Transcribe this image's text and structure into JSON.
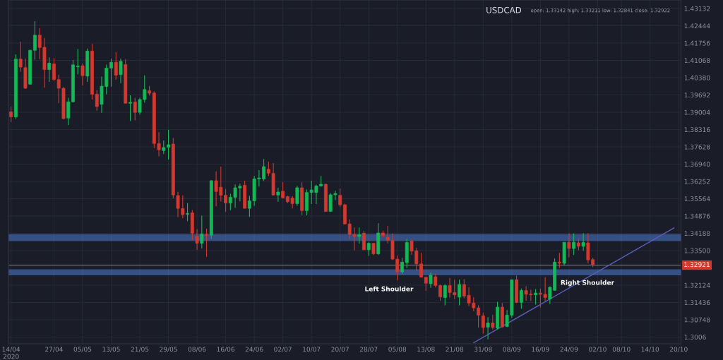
{
  "chart_data": {
    "type": "candlestick",
    "title": "USDCAD",
    "subtitle": "open: 1.33142 high: 1.33211 low: 1.32841 close: 1.32922",
    "categories": [
      "14/04\n2020",
      null,
      null,
      null,
      null,
      null,
      null,
      null,
      null,
      "27/04",
      null,
      null,
      null,
      null,
      null,
      "05/05",
      null,
      null,
      null,
      null,
      null,
      "13/05",
      null,
      null,
      null,
      null,
      null,
      "21/05",
      null,
      null,
      null,
      null,
      null,
      "29/05",
      null,
      null,
      null,
      null,
      null,
      "08/06",
      null,
      null,
      null,
      null,
      null,
      "16/06",
      null,
      null,
      null,
      null,
      null,
      "24/06",
      null,
      null,
      null,
      null,
      null,
      "02/07",
      null,
      null,
      null,
      null,
      null,
      "10/07",
      null,
      null,
      null,
      null,
      null,
      "20/07",
      null,
      null,
      null,
      null,
      null,
      "28/07",
      null,
      null,
      null,
      null,
      null,
      "05/08",
      null,
      null,
      null,
      null,
      null,
      "13/08",
      null,
      null,
      null,
      null,
      null,
      "21/08",
      null,
      null,
      null,
      null,
      null,
      "31/08",
      null,
      null,
      null,
      null,
      null,
      "08/09",
      null,
      null,
      null,
      null,
      null,
      "16/09",
      null,
      null,
      null,
      null,
      null,
      "24/09",
      null,
      null,
      null,
      null,
      null,
      "02/10",
      null,
      null,
      null,
      null,
      "08/10",
      null,
      null,
      null,
      null,
      null,
      "14/10",
      null,
      null,
      null,
      null,
      null,
      "20/10"
    ],
    "ohlc": [
      [
        1.3902,
        1.3923,
        1.3861,
        1.3882
      ],
      [
        1.3882,
        1.4131,
        1.3874,
        1.4112
      ],
      [
        1.4112,
        1.4181,
        1.4061,
        1.408
      ],
      [
        1.4078,
        1.4114,
        1.3993,
        1.3996
      ],
      [
        1.4012,
        1.415,
        1.401,
        1.4147
      ],
      [
        1.4147,
        1.4263,
        1.411,
        1.4207
      ],
      [
        1.4207,
        1.4235,
        1.4112,
        1.4158
      ],
      [
        1.4159,
        1.4196,
        1.3998,
        1.407
      ],
      [
        1.407,
        1.4119,
        1.4021,
        1.4096
      ],
      [
        1.4093,
        1.4116,
        1.4026,
        1.403
      ],
      [
        1.403,
        1.4049,
        1.3936,
        1.3996
      ],
      [
        1.3996,
        1.4001,
        1.3872,
        1.3875
      ],
      [
        1.3877,
        1.3958,
        1.3849,
        1.3942
      ],
      [
        1.3942,
        1.4108,
        1.3939,
        1.4089
      ],
      [
        1.4081,
        1.4152,
        1.4051,
        1.4084
      ],
      [
        1.4085,
        1.4094,
        1.4007,
        1.4046
      ],
      [
        1.4044,
        1.4154,
        1.4021,
        1.4144
      ],
      [
        1.4144,
        1.4173,
        1.3951,
        1.3972
      ],
      [
        1.3972,
        1.3989,
        1.3907,
        1.3923
      ],
      [
        1.3932,
        1.4042,
        1.3898,
        1.4004
      ],
      [
        1.4003,
        1.409,
        1.3972,
        1.4076
      ],
      [
        1.4076,
        1.4114,
        1.4002,
        1.4099
      ],
      [
        1.4099,
        1.414,
        1.403,
        1.4048
      ],
      [
        1.405,
        1.4114,
        1.4016,
        1.4103
      ],
      [
        1.409,
        1.4112,
        1.3936,
        1.3936
      ],
      [
        1.3936,
        1.3968,
        1.3865,
        1.394
      ],
      [
        1.3941,
        1.3958,
        1.3868,
        1.39
      ],
      [
        1.39,
        1.3958,
        1.3891,
        1.3951
      ],
      [
        1.3951,
        1.4047,
        1.3939,
        1.3991
      ],
      [
        1.3986,
        1.4005,
        1.3967,
        1.3976
      ],
      [
        1.3977,
        1.3984,
        1.3758,
        1.3776
      ],
      [
        1.3776,
        1.3821,
        1.3725,
        1.3751
      ],
      [
        1.3748,
        1.3788,
        1.3734,
        1.376
      ],
      [
        1.3761,
        1.383,
        1.3712,
        1.3771
      ],
      [
        1.3774,
        1.3798,
        1.3558,
        1.3571
      ],
      [
        1.3569,
        1.3584,
        1.3483,
        1.3518
      ],
      [
        1.3517,
        1.357,
        1.3479,
        1.3493
      ],
      [
        1.3494,
        1.3539,
        1.3467,
        1.3498
      ],
      [
        1.35,
        1.3511,
        1.3393,
        1.3419
      ],
      [
        1.3407,
        1.3435,
        1.3353,
        1.3379
      ],
      [
        1.3379,
        1.3489,
        1.3358,
        1.3416
      ],
      [
        1.3414,
        1.3437,
        1.3325,
        1.341
      ],
      [
        1.3411,
        1.363,
        1.3397,
        1.3628
      ],
      [
        1.3628,
        1.3665,
        1.3526,
        1.3585
      ],
      [
        1.3602,
        1.3684,
        1.3545,
        1.357
      ],
      [
        1.357,
        1.3595,
        1.3504,
        1.3539
      ],
      [
        1.3539,
        1.3576,
        1.3511,
        1.3562
      ],
      [
        1.3562,
        1.3613,
        1.352,
        1.36
      ],
      [
        1.3599,
        1.3616,
        1.3546,
        1.3606
      ],
      [
        1.361,
        1.3628,
        1.3518,
        1.3518
      ],
      [
        1.3518,
        1.3568,
        1.3484,
        1.3548
      ],
      [
        1.3548,
        1.3646,
        1.3528,
        1.3635
      ],
      [
        1.3635,
        1.367,
        1.3605,
        1.3639
      ],
      [
        1.3635,
        1.3714,
        1.3627,
        1.3684
      ],
      [
        1.3674,
        1.3704,
        1.3647,
        1.3658
      ],
      [
        1.3657,
        1.3698,
        1.3569,
        1.3571
      ],
      [
        1.3571,
        1.36,
        1.3544,
        1.3583
      ],
      [
        1.3586,
        1.3622,
        1.3557,
        1.356
      ],
      [
        1.3565,
        1.3568,
        1.3539,
        1.3544
      ],
      [
        1.3559,
        1.3566,
        1.3518,
        1.3537
      ],
      [
        1.3537,
        1.3607,
        1.3528,
        1.36
      ],
      [
        1.36,
        1.3622,
        1.349,
        1.3509
      ],
      [
        1.3509,
        1.3593,
        1.349,
        1.3581
      ],
      [
        1.3581,
        1.3628,
        1.3535,
        1.3591
      ],
      [
        1.3581,
        1.3612,
        1.3535,
        1.3607
      ],
      [
        1.3607,
        1.3646,
        1.3604,
        1.3614
      ],
      [
        1.3614,
        1.3616,
        1.3504,
        1.3506
      ],
      [
        1.3506,
        1.3579,
        1.3504,
        1.3572
      ],
      [
        1.3572,
        1.3588,
        1.3551,
        1.3577
      ],
      [
        1.357,
        1.3597,
        1.3523,
        1.3532
      ],
      [
        1.3532,
        1.3537,
        1.3453,
        1.3456
      ],
      [
        1.3456,
        1.3474,
        1.3397,
        1.3414
      ],
      [
        1.3414,
        1.3442,
        1.3351,
        1.3406
      ],
      [
        1.3406,
        1.3442,
        1.3377,
        1.3413
      ],
      [
        1.3419,
        1.3429,
        1.3353,
        1.3353
      ],
      [
        1.3353,
        1.3383,
        1.3329,
        1.3379
      ],
      [
        1.3379,
        1.3381,
        1.3332,
        1.3337
      ],
      [
        1.3337,
        1.3459,
        1.3332,
        1.342
      ],
      [
        1.342,
        1.343,
        1.3402,
        1.3409
      ],
      [
        1.3403,
        1.3448,
        1.3379,
        1.3391
      ],
      [
        1.339,
        1.3418,
        1.3313,
        1.3316
      ],
      [
        1.3316,
        1.333,
        1.3232,
        1.3265
      ],
      [
        1.3265,
        1.3321,
        1.3256,
        1.3304
      ],
      [
        1.3302,
        1.3397,
        1.3281,
        1.3382
      ],
      [
        1.3388,
        1.3393,
        1.3332,
        1.3348
      ],
      [
        1.3349,
        1.336,
        1.327,
        1.3297
      ],
      [
        1.3297,
        1.3341,
        1.3244,
        1.3244
      ],
      [
        1.3244,
        1.3244,
        1.319,
        1.322
      ],
      [
        1.3218,
        1.3262,
        1.3202,
        1.3253
      ],
      [
        1.3246,
        1.3257,
        1.3203,
        1.3211
      ],
      [
        1.3211,
        1.3215,
        1.315,
        1.3166
      ],
      [
        1.3163,
        1.3216,
        1.3132,
        1.3211
      ],
      [
        1.3211,
        1.3241,
        1.3163,
        1.3183
      ],
      [
        1.3183,
        1.3234,
        1.3157,
        1.3174
      ],
      [
        1.3165,
        1.3234,
        1.3132,
        1.3215
      ],
      [
        1.3215,
        1.3236,
        1.316,
        1.3169
      ],
      [
        1.3172,
        1.3204,
        1.3129,
        1.3141
      ],
      [
        1.3141,
        1.3164,
        1.3108,
        1.3122
      ],
      [
        1.3122,
        1.3132,
        1.3044,
        1.3093
      ],
      [
        1.309,
        1.3102,
        1.302,
        1.3044
      ],
      [
        1.3045,
        1.3085,
        1.2997,
        1.3062
      ],
      [
        1.3062,
        1.3094,
        1.3036,
        1.3044
      ],
      [
        1.3041,
        1.3146,
        1.3036,
        1.3125
      ],
      [
        1.3125,
        1.3141,
        1.3044,
        1.3046
      ],
      [
        1.3048,
        1.3113,
        1.3045,
        1.3093
      ],
      [
        1.3093,
        1.3234,
        1.3083,
        1.3234
      ],
      [
        1.3234,
        1.325,
        1.3141,
        1.3144
      ],
      [
        1.3144,
        1.3199,
        1.3118,
        1.3191
      ],
      [
        1.3191,
        1.3208,
        1.315,
        1.3176
      ],
      [
        1.3177,
        1.3194,
        1.3149,
        1.3174
      ],
      [
        1.3174,
        1.3197,
        1.3135,
        1.3181
      ],
      [
        1.3181,
        1.3199,
        1.3124,
        1.3176
      ],
      [
        1.3176,
        1.3244,
        1.315,
        1.3163
      ],
      [
        1.3157,
        1.3208,
        1.3137,
        1.3204
      ],
      [
        1.3192,
        1.3318,
        1.319,
        1.3304
      ],
      [
        1.3304,
        1.3341,
        1.3281,
        1.33
      ],
      [
        1.3299,
        1.3383,
        1.329,
        1.3383
      ],
      [
        1.3383,
        1.3418,
        1.3323,
        1.3358
      ],
      [
        1.3358,
        1.3418,
        1.3332,
        1.3383
      ],
      [
        1.3381,
        1.3399,
        1.3351,
        1.3367
      ],
      [
        1.3367,
        1.3419,
        1.3349,
        1.3382
      ],
      [
        1.3381,
        1.3419,
        1.3299,
        1.3313
      ],
      [
        1.33142,
        1.33211,
        1.32841,
        1.32922
      ],
      null,
      null,
      null,
      null,
      null,
      null,
      null,
      null,
      null,
      null,
      null,
      null,
      null,
      null,
      null,
      null,
      null,
      null
    ],
    "colors": [
      "#d2392f",
      "#14b856",
      "#d2392f",
      "#d2392f",
      "#14b856",
      "#14b856",
      "#d2392f",
      "#d2392f",
      "#14b856",
      "#d2392f",
      "#d2392f",
      "#d2392f",
      "#14b856",
      "#14b856",
      "#14b856",
      "#d2392f",
      "#14b856",
      "#d2392f",
      "#d2392f",
      "#14b856",
      "#14b856",
      "#14b856",
      "#d2392f",
      "#14b856",
      "#d2392f",
      "#14b856",
      "#d2392f",
      "#14b856",
      "#14b856",
      "#d2392f",
      "#d2392f",
      "#d2392f",
      "#14b856",
      "#14b856",
      "#d2392f",
      "#d2392f",
      "#d2392f",
      "#14b856",
      "#d2392f",
      "#d2392f",
      "#14b856",
      "#d2392f",
      "#14b856",
      "#d2392f",
      "#d2392f",
      "#d2392f",
      "#14b856",
      "#14b856",
      "#14b856",
      "#d2392f",
      "#14b856",
      "#14b856",
      "#14b856",
      "#14b856",
      "#d2392f",
      "#d2392f",
      "#14b856",
      "#d2392f",
      "#d2392f",
      "#d2392f",
      "#14b856",
      "#d2392f",
      "#14b856",
      "#14b856",
      "#14b856",
      "#14b856",
      "#d2392f",
      "#14b856",
      "#14b856",
      "#d2392f",
      "#d2392f",
      "#d2392f",
      "#d2392f",
      "#14b856",
      "#d2392f",
      "#14b856",
      "#d2392f",
      "#14b856",
      "#d2392f",
      "#d2392f",
      "#d2392f",
      "#d2392f",
      "#14b856",
      "#14b856",
      "#d2392f",
      "#d2392f",
      "#d2392f",
      "#d2392f",
      "#14b856",
      "#d2392f",
      "#d2392f",
      "#14b856",
      "#d2392f",
      "#d2392f",
      "#14b856",
      "#d2392f",
      "#d2392f",
      "#d2392f",
      "#d2392f",
      "#d2392f",
      "#14b856",
      "#d2392f",
      "#14b856",
      "#d2392f",
      "#14b856",
      "#14b856",
      "#d2392f",
      "#14b856",
      "#d2392f",
      "#d2392f",
      "#14b856",
      "#d2392f",
      "#d2392f",
      "#14b856",
      "#14b856",
      "#d2392f",
      "#14b856",
      "#d2392f",
      "#14b856",
      "#d2392f",
      "#14b856",
      "#d2392f",
      "#d2392f",
      null,
      null,
      null,
      null,
      null,
      null,
      null,
      null,
      null,
      null,
      null,
      null,
      null,
      null,
      null,
      null,
      null,
      null
    ],
    "bands": [
      {
        "axis": "y",
        "from": 1.339,
        "to": 1.3413,
        "color": "#4f7ad0"
      },
      {
        "axis": "y",
        "from": 1.3254,
        "to": 1.3273,
        "color": "#4f7ad0"
      }
    ],
    "series": [
      {
        "type": "line",
        "color": "#5a5fb8",
        "values": [
          null,
          null,
          null,
          null,
          null,
          null,
          null,
          null,
          null,
          null,
          null,
          null,
          null,
          null,
          null,
          null,
          null,
          null,
          null,
          null,
          null,
          null,
          null,
          null,
          null,
          null,
          null,
          null,
          null,
          null,
          null,
          null,
          null,
          null,
          null,
          null,
          null,
          null,
          null,
          null,
          null,
          null,
          null,
          null,
          null,
          null,
          null,
          null,
          null,
          null,
          null,
          null,
          null,
          null,
          null,
          null,
          null,
          null,
          null,
          null,
          null,
          null,
          null,
          null,
          null,
          null,
          null,
          null,
          null,
          null,
          null,
          null,
          null,
          null,
          null,
          null,
          null,
          null,
          null,
          null,
          null,
          null,
          null,
          null,
          null,
          null,
          null,
          null,
          null,
          null,
          null,
          null,
          null,
          null,
          null,
          null,
          null,
          1.2983,
          null,
          null,
          null,
          null,
          null,
          null,
          null,
          null,
          null,
          null,
          null,
          null,
          null,
          null,
          null,
          null,
          null,
          null,
          null,
          null,
          null,
          null,
          null,
          null,
          null,
          null,
          null,
          null,
          null,
          null,
          null,
          null,
          null,
          null,
          null,
          null,
          null,
          null,
          null,
          null,
          null,
          1.344,
          null
        ]
      }
    ],
    "ylim": [
      1.2979,
      1.4347
    ],
    "yticks": [
      1.3006,
      1.30748,
      1.31436,
      1.32124,
      {
        "value": 1.335,
        "label": "1.33500"
      },
      1.34188,
      1.34876,
      1.35564,
      1.36252,
      {
        "value": 1.3694,
        "label": "1.36940"
      },
      1.37628,
      1.38316,
      1.39004,
      1.39692,
      {
        "value": 1.4038,
        "label": "1.40380"
      },
      1.41068,
      1.41756,
      1.42444,
      1.43132
    ],
    "ref_lines": [
      {
        "axis": "y",
        "value": 1.32921,
        "label": "1.32921",
        "color": "#6d707a"
      }
    ],
    "annotations": [
      "Left Shoulder",
      "Right Shoulder"
    ],
    "grid": true
  }
}
